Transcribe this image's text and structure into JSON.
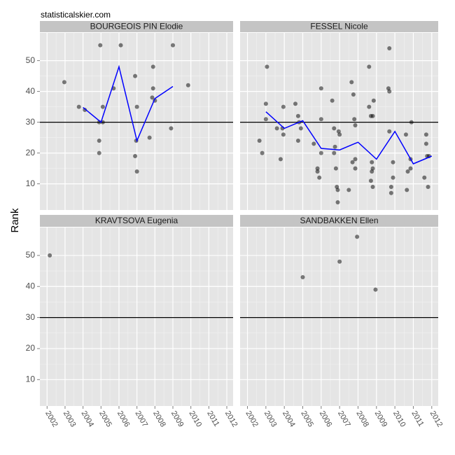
{
  "watermark": "statisticalskier.com",
  "chart_data": [
    {
      "type": "scatter",
      "title": "BOURGEOIS PIN Elodie",
      "ylabel": "Rank",
      "xlim": [
        2001.6,
        2012.35
      ],
      "ylim": [
        1.5,
        59
      ],
      "xticks": [
        2002,
        2003,
        2004,
        2005,
        2006,
        2007,
        2008,
        2009,
        2010,
        2011,
        2012
      ],
      "yticks": [
        10,
        20,
        30,
        40,
        50
      ],
      "grid": true,
      "hline": 30,
      "series": [
        {
          "type": "scatter",
          "color": "#000000",
          "alpha": 0.5,
          "x": [
            2002.96,
            2003.77,
            2004.1,
            2004.96,
            2004.9,
            2005.1,
            2005.1,
            2004.9,
            2004.9,
            2005.7,
            2006.1,
            2006.9,
            2007.0,
            2006.96,
            2006.9,
            2007.0,
            2007.9,
            2007.9,
            2007.85,
            2008.0,
            2007.7,
            2009.0,
            2008.9,
            2009.85
          ],
          "values": [
            43,
            35,
            34,
            55,
            30,
            30,
            35,
            24,
            20,
            41,
            55,
            45,
            35,
            24,
            19,
            14,
            48,
            41,
            38,
            37,
            25,
            55,
            28,
            42
          ]
        },
        {
          "type": "line",
          "color": "#0000ff",
          "x": [
            2004,
            2005,
            2006,
            2007,
            2008,
            2009
          ],
          "values": [
            34.8,
            30,
            48,
            24,
            37.7,
            41.6
          ]
        }
      ]
    },
    {
      "type": "scatter",
      "title": "FESSEL Nicole",
      "xlim": [
        2001.6,
        2012.35
      ],
      "ylim": [
        1.5,
        59
      ],
      "xticks": [
        2002,
        2003,
        2004,
        2005,
        2006,
        2007,
        2008,
        2009,
        2010,
        2011,
        2012
      ],
      "yticks": [
        10,
        20,
        30,
        40,
        50
      ],
      "grid": true,
      "hline": 30,
      "series": [
        {
          "type": "scatter",
          "color": "#000000",
          "alpha": 0.5,
          "x": [
            2002.65,
            2002.8,
            2003.0,
            2003.0,
            2003.06,
            2003.6,
            2003.8,
            2003.9,
            2003.95,
            2003.95,
            2004.6,
            2004.75,
            2004.75,
            2004.9,
            2004.8,
            2005.6,
            2005.8,
            2005.8,
            2005.9,
            2006.0,
            2006.0,
            2006.0,
            2006.6,
            2006.7,
            2006.7,
            2006.75,
            2006.8,
            2006.85,
            2006.9,
            2006.9,
            2006.95,
            2007.0,
            2007.5,
            2007.65,
            2007.75,
            2007.8,
            2007.85,
            2007.85,
            2007.7,
            2007.85,
            2008.6,
            2008.6,
            2008.7,
            2008.8,
            2008.85,
            2008.75,
            2008.75,
            2008.7,
            2008.8,
            2008.8,
            2009.7,
            2009.65,
            2009.7,
            2009.7,
            2009.8,
            2009.9,
            2009.8,
            2009.9,
            2010.6,
            2010.65,
            2010.7,
            2010.85,
            2010.85,
            2010.9,
            2011.6,
            2011.7,
            2011.7,
            2011.75,
            2011.85,
            2011.8
          ],
          "values": [
            24,
            20,
            31,
            36,
            48,
            28,
            18,
            28,
            35,
            26,
            36,
            32,
            24,
            28,
            30,
            23,
            15,
            14,
            12,
            41,
            31,
            20,
            37,
            28,
            20,
            22,
            15,
            9,
            8,
            4,
            27,
            26,
            8,
            43,
            39,
            31,
            29,
            18,
            17,
            15,
            48,
            35,
            32,
            32,
            37,
            14,
            17,
            11,
            9,
            15,
            54,
            41,
            40,
            27,
            9,
            17,
            7,
            12,
            26,
            8,
            14,
            18,
            15,
            30,
            12,
            26,
            23,
            19,
            19,
            9
          ]
        },
        {
          "type": "line",
          "color": "#0000ff",
          "x": [
            2003,
            2004,
            2005,
            2006,
            2007,
            2008,
            2009,
            2010,
            2011,
            2012
          ],
          "values": [
            33.4,
            28,
            30.5,
            21.5,
            21,
            23.5,
            18,
            27,
            16.5,
            19
          ]
        }
      ]
    },
    {
      "type": "scatter",
      "title": "KRAVTSOVA Eugenia",
      "xlim": [
        2001.6,
        2012.35
      ],
      "ylim": [
        1.5,
        59
      ],
      "xticks": [
        2002,
        2003,
        2004,
        2005,
        2006,
        2007,
        2008,
        2009,
        2010,
        2011,
        2012
      ],
      "yticks": [
        10,
        20,
        30,
        40,
        50
      ],
      "grid": true,
      "hline": 30,
      "series": [
        {
          "type": "scatter",
          "color": "#000000",
          "alpha": 0.5,
          "x": [
            2002.15
          ],
          "values": [
            50
          ]
        }
      ]
    },
    {
      "type": "scatter",
      "title": "SANDBAKKEN Ellen",
      "xlim": [
        2001.6,
        2012.35
      ],
      "ylim": [
        1.5,
        59
      ],
      "xticks": [
        2002,
        2003,
        2004,
        2005,
        2006,
        2007,
        2008,
        2009,
        2010,
        2011,
        2012
      ],
      "yticks": [
        10,
        20,
        30,
        40,
        50
      ],
      "grid": true,
      "hline": 30,
      "series": [
        {
          "type": "scatter",
          "color": "#000000",
          "alpha": 0.5,
          "x": [
            2005.0,
            2007.0,
            2007.95,
            2008.95
          ],
          "values": [
            43,
            48,
            56,
            39
          ]
        }
      ]
    }
  ]
}
